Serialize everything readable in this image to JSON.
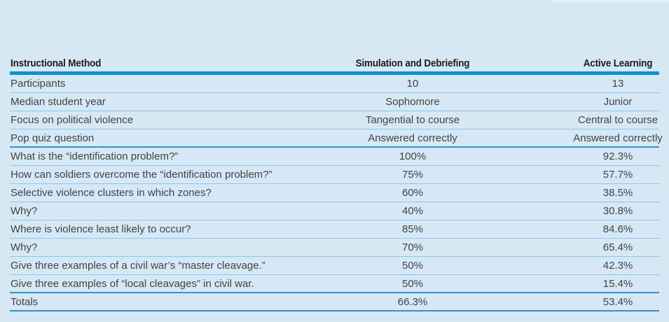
{
  "colors": {
    "background": "#d7e8f5",
    "top_highlight": "#e4eff9",
    "header_rule": "#0e90d4",
    "thin_rule": "#8cc6e8",
    "strong_rule": "#2e93cf",
    "header_text": "#1c1c1a",
    "body_text": "#3e4446"
  },
  "table": {
    "columns": [
      {
        "label": "Instructional Method"
      },
      {
        "label": "Simulation and Debriefing"
      },
      {
        "label": "Active Learning"
      }
    ],
    "groups": [
      {
        "name": "class-profile",
        "rows": [
          {
            "label": "Participants",
            "simulation": "10",
            "active": "13"
          },
          {
            "label": "Median student year",
            "simulation": "Sophomore",
            "active": "Junior"
          },
          {
            "label": "Focus on political violence",
            "simulation": "Tangential to course",
            "active": "Central to course"
          },
          {
            "label": "Pop quiz question",
            "simulation": "Answered correctly",
            "active": "Answered correctly"
          }
        ]
      },
      {
        "name": "quiz-results",
        "rows": [
          {
            "label": "What is the “identification problem?”",
            "simulation": "100%",
            "active": "92.3%"
          },
          {
            "label": "How can soldiers overcome the “identification problem?”",
            "simulation": "75%",
            "active": "57.7%"
          },
          {
            "label": "Selective violence clusters in which zones?",
            "simulation": "60%",
            "active": "38.5%"
          },
          {
            "label": "Why?",
            "simulation": "40%",
            "active": "30.8%"
          },
          {
            "label": "Where is violence least likely to occur?",
            "simulation": "85%",
            "active": "84.6%"
          },
          {
            "label": "Why?",
            "simulation": "70%",
            "active": "65.4%"
          },
          {
            "label": "Give three examples of a civil war’s “master cleavage.”",
            "simulation": "50%",
            "active": "42.3%"
          },
          {
            "label": "Give three examples of “local cleavages” in civil war.",
            "simulation": "50%",
            "active": "15.4%"
          }
        ]
      },
      {
        "name": "totals",
        "rows": [
          {
            "label": "Totals",
            "simulation": "66.3%",
            "active": "53.4%"
          }
        ]
      }
    ]
  }
}
